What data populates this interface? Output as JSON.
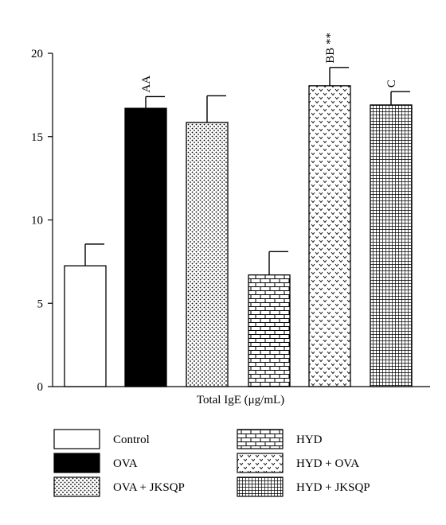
{
  "chart_data": {
    "type": "bar",
    "categories": [
      "Control",
      "OVA",
      "OVA + JKSQP",
      "HYD",
      "HYD + OVA",
      "HYD + JKSQP"
    ],
    "values": [
      7.25,
      16.7,
      15.85,
      6.7,
      18.05,
      16.9
    ],
    "errors": [
      1.3,
      0.7,
      1.6,
      1.4,
      1.1,
      0.8
    ],
    "significance": [
      "",
      "AA",
      "",
      "",
      "BB **",
      "C"
    ],
    "patterns": [
      "white",
      "black",
      "dots",
      "bricks",
      "chevrons",
      "grid"
    ],
    "xlabel": "Total IgE (μg/mL)",
    "ylabel": "",
    "ylim": [
      0,
      20
    ],
    "yticks": [
      0,
      5,
      10,
      15,
      20
    ],
    "legend": [
      "Control",
      "HYD",
      "OVA",
      "HYD + OVA",
      "OVA + JKSQP",
      "HYD + JKSQP"
    ],
    "legend_placement": "bottom",
    "grid": false
  }
}
